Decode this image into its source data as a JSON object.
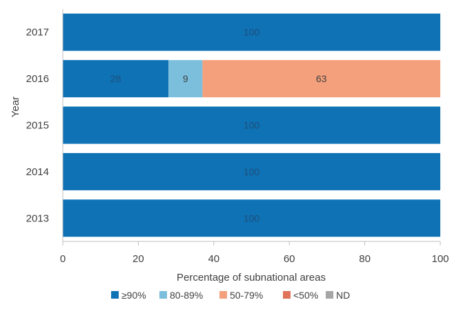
{
  "chart_data": {
    "type": "bar",
    "orientation": "horizontal",
    "stacked": true,
    "title": "",
    "xlabel": "Percentage of subnational areas",
    "ylabel": "Year",
    "xlim": [
      0,
      100
    ],
    "xticks": [
      "0",
      "20",
      "40",
      "60",
      "80",
      "100"
    ],
    "grid": false,
    "legend_position": "bottom",
    "categories": [
      "2017",
      "2016",
      "2015",
      "2014",
      "2013"
    ],
    "series": [
      {
        "name": "≥90%",
        "color": "#0e72b5",
        "values": [
          100,
          28,
          100,
          100,
          100
        ]
      },
      {
        "name": "80-89%",
        "color": "#7bbfdd",
        "values": [
          0,
          9,
          0,
          0,
          0
        ]
      },
      {
        "name": "50-79%",
        "color": "#f5a07c",
        "values": [
          0,
          63,
          0,
          0,
          0
        ]
      },
      {
        "name": "<50%",
        "color": "#e0735a",
        "values": [
          0,
          0,
          0,
          0,
          0
        ]
      },
      {
        "name": "ND",
        "color": "#a6a6a6",
        "values": [
          0,
          0,
          0,
          0,
          0
        ]
      }
    ]
  }
}
